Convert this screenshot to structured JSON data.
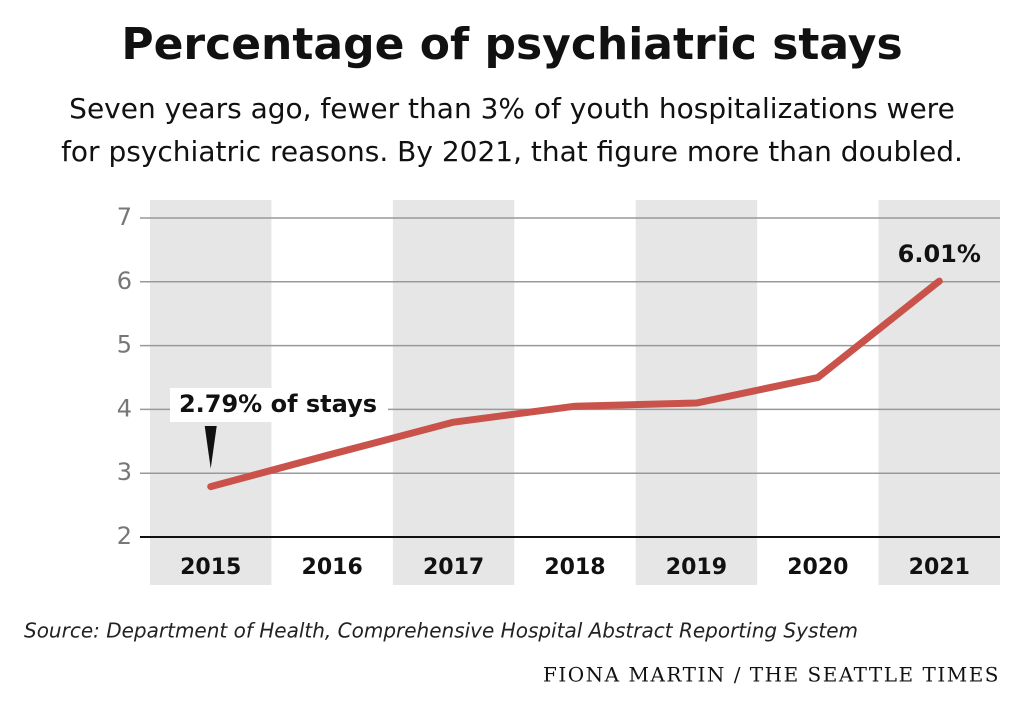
{
  "chart_data": {
    "type": "line",
    "title": "Percentage of psychiatric stays",
    "subtitle": [
      "Seven years ago, fewer than 3% of youth hospitalizations were",
      "for psychiatric reasons. By 2021, that figure more than doubled."
    ],
    "categories": [
      "2015",
      "2016",
      "2017",
      "2018",
      "2019",
      "2020",
      "2021"
    ],
    "values": [
      2.79,
      3.3,
      3.8,
      4.05,
      4.1,
      4.5,
      6.01
    ],
    "value_labels": [
      "2.79% of stays",
      null,
      null,
      null,
      null,
      null,
      "6.01%"
    ],
    "color": "#c9534a",
    "ylim": [
      2,
      7
    ],
    "yticks": [
      2,
      3,
      4,
      5,
      6,
      7
    ],
    "grid": true,
    "source": "Source: Department of Health, Comprehensive Hospital Abstract Reporting System",
    "credit": "FIONA MARTIN / THE SEATTLE TIMES"
  }
}
